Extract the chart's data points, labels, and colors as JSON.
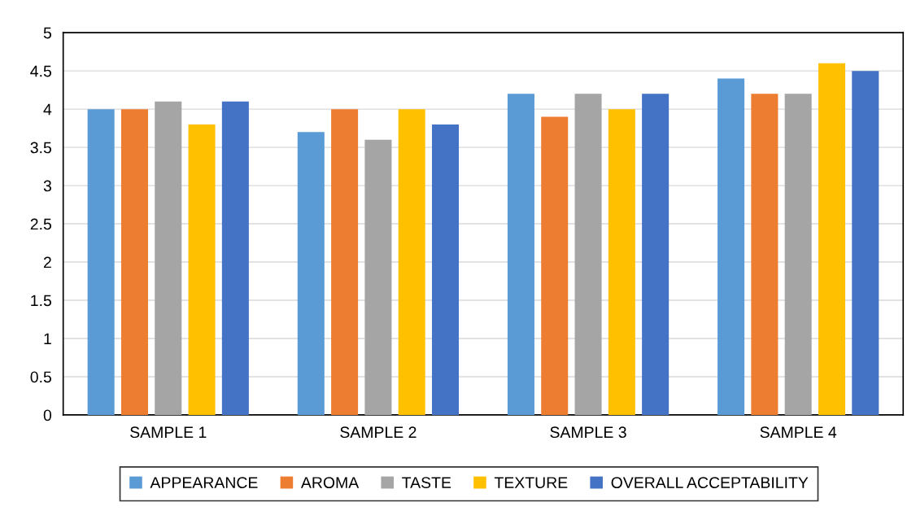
{
  "chart_data": {
    "type": "bar",
    "categories": [
      "SAMPLE 1",
      "SAMPLE 2",
      "SAMPLE 3",
      "SAMPLE 4"
    ],
    "series": [
      {
        "name": "APPEARANCE",
        "color": "#5b9bd5",
        "values": [
          4.0,
          3.7,
          4.2,
          4.4
        ]
      },
      {
        "name": "AROMA",
        "color": "#ed7d31",
        "values": [
          4.0,
          4.0,
          3.9,
          4.2
        ]
      },
      {
        "name": "TASTE",
        "color": "#a5a5a5",
        "values": [
          4.1,
          3.6,
          4.2,
          4.2
        ]
      },
      {
        "name": "TEXTURE",
        "color": "#ffc000",
        "values": [
          3.8,
          4.0,
          4.0,
          4.6
        ]
      },
      {
        "name": "OVERALL ACCEPTABILITY",
        "color": "#4472c4",
        "values": [
          4.1,
          3.8,
          4.2,
          4.5
        ]
      }
    ],
    "ylim": [
      0,
      5
    ],
    "yticks": [
      0,
      0.5,
      1,
      1.5,
      2,
      2.5,
      3,
      3.5,
      4,
      4.5,
      5
    ],
    "grid": "y",
    "legend": "bottom"
  }
}
